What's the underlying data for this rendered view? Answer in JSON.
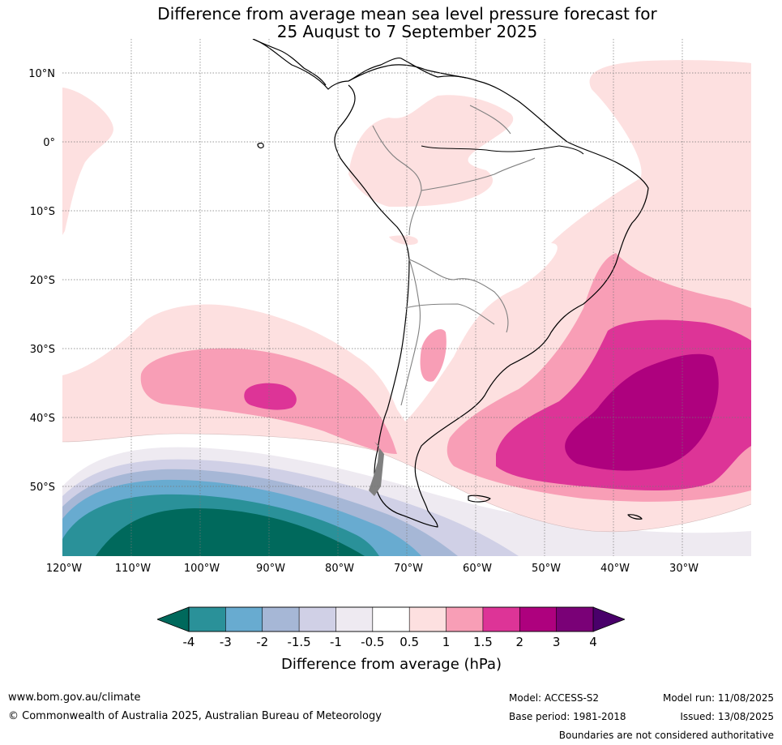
{
  "title_line1": "Difference from average mean sea level pressure forecast for",
  "title_line2": "25 August to 7 September 2025",
  "lat_labels": [
    "10°N",
    "0°",
    "10°S",
    "20°S",
    "30°S",
    "40°S",
    "50°S"
  ],
  "lon_labels": [
    "120°W",
    "110°W",
    "100°W",
    "90°W",
    "80°W",
    "70°W",
    "60°W",
    "50°W",
    "40°W",
    "30°W"
  ],
  "colorbar": {
    "ticks": [
      "-4",
      "-3",
      "-2",
      "-1.5",
      "-1",
      "-0.5",
      "0.5",
      "1",
      "1.5",
      "2",
      "3",
      "4"
    ],
    "colors": [
      "#2a9199",
      "#68abd0",
      "#a6b7d6",
      "#d0d0e6",
      "#eeeaf1",
      "#ffffff",
      "#fde0e0",
      "#f89eb6",
      "#dd3497",
      "#ae017e",
      "#7a0177"
    ],
    "under_color": "#00695c",
    "over_color": "#49006a",
    "label": "Difference from average (hPa)"
  },
  "footer": {
    "website": "www.bom.gov.au/climate",
    "copyright": "© Commonwealth of Australia 2025, Australian Bureau of Meteorology",
    "model": "Model: ACCESS-S2",
    "base_period": "Base period: 1981-2018",
    "model_run": "Model run: 11/08/2025",
    "issued": "Issued: 13/08/2025",
    "disclaimer": "Boundaries are not considered authoritative"
  }
}
